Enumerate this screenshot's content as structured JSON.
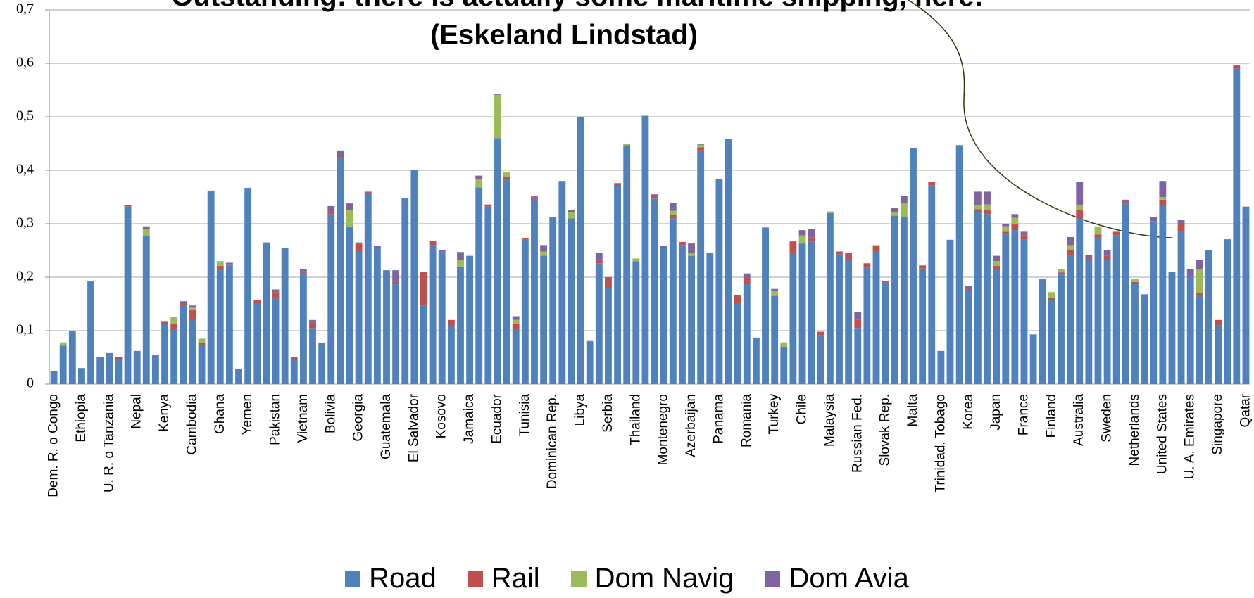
{
  "chart_data": {
    "type": "stacked_bar",
    "title": "Outstanding: there is actually some maritime shipping, here!",
    "subtitle": "(Eskeland Lindstad)",
    "categories": [
      "Dem. R. o Congo",
      null,
      null,
      "Ethiopia",
      null,
      null,
      "U. R. o Tanzania",
      null,
      null,
      "Nepal",
      null,
      null,
      "Kenya",
      null,
      null,
      "Cambodia",
      null,
      null,
      "Ghana",
      null,
      null,
      "Yemen",
      null,
      null,
      "Pakistan",
      null,
      null,
      "Vietnam",
      null,
      null,
      "Bolivia",
      null,
      null,
      "Georgia",
      null,
      null,
      "Guatemala",
      null,
      null,
      "El Salvador",
      null,
      null,
      "Kosovo",
      null,
      null,
      "Jamaica",
      null,
      null,
      "Ecuador",
      null,
      null,
      "Tunisia",
      null,
      null,
      "Dominican Rep.",
      null,
      null,
      "Libya",
      null,
      null,
      "Serbia",
      null,
      null,
      "Thailand",
      null,
      null,
      "Montenegro",
      null,
      null,
      "Azerbaijan",
      null,
      null,
      "Panama",
      null,
      null,
      "Romania",
      null,
      null,
      "Turkey",
      null,
      null,
      "Chile",
      null,
      null,
      "Malaysia",
      null,
      null,
      "Russian Fed.",
      null,
      null,
      "Slovak Rep.",
      null,
      null,
      "Malta",
      null,
      null,
      "Trinidad, Tobago",
      null,
      null,
      "Korea",
      null,
      null,
      "Japan",
      null,
      null,
      "France",
      null,
      null,
      "Finland",
      null,
      null,
      "Australia",
      null,
      null,
      "Sweden",
      null,
      null,
      "Netherlands",
      null,
      null,
      "United States",
      null,
      null,
      "U. A. Emirates",
      null,
      null,
      "Singapore",
      null,
      null,
      "Qatar"
    ],
    "series": [
      {
        "name": "Road",
        "color": "#4f81bd",
        "values": [
          0.025,
          0.072,
          0.1,
          0.03,
          0.192,
          0.05,
          0.058,
          0.046,
          0.332,
          0.062,
          0.278,
          0.054,
          0.112,
          0.102,
          0.148,
          0.122,
          0.073,
          0.36,
          0.215,
          0.222,
          0.029,
          0.367,
          0.152,
          0.265,
          0.16,
          0.254,
          0.045,
          0.208,
          0.105,
          0.077,
          0.318,
          0.425,
          0.295,
          0.248,
          0.357,
          0.254,
          0.213,
          0.188,
          0.348,
          0.4,
          0.147,
          0.26,
          0.247,
          0.108,
          0.22,
          0.24,
          0.368,
          0.332,
          0.46,
          0.384,
          0.103,
          0.27,
          0.346,
          0.24,
          0.313,
          0.38,
          0.31,
          0.5,
          0.08,
          0.226,
          0.18,
          0.37,
          0.447,
          0.23,
          0.502,
          0.347,
          0.255,
          0.31,
          0.26,
          0.24,
          0.437,
          0.245,
          0.383,
          0.458,
          0.152,
          0.188,
          0.087,
          0.293,
          0.165,
          0.07,
          0.245,
          0.263,
          0.267,
          0.092,
          0.32,
          0.243,
          0.232,
          0.105,
          0.218,
          0.248,
          0.19,
          0.315,
          0.312,
          0.442,
          0.216,
          0.372,
          0.062,
          0.27,
          0.447,
          0.177,
          0.322,
          0.318,
          0.215,
          0.28,
          0.288,
          0.27,
          0.093,
          0.196,
          0.157,
          0.205,
          0.24,
          0.31,
          0.233,
          0.275,
          0.232,
          0.278,
          0.338,
          0.187,
          0.168,
          0.305,
          0.335,
          0.21,
          0.285,
          0.2,
          0.165,
          0.25,
          0.11,
          0.271,
          0.59,
          0.332
        ]
      },
      {
        "name": "Rail",
        "color": "#c0504d",
        "values": [
          0,
          0,
          0,
          0,
          0,
          0,
          0,
          0.004,
          0.003,
          0,
          0,
          0,
          0.006,
          0.01,
          0.004,
          0.017,
          0.004,
          0.002,
          0.006,
          0.002,
          0,
          0,
          0.005,
          0,
          0.012,
          0,
          0.005,
          0.003,
          0.01,
          0,
          0.003,
          0.003,
          0,
          0.015,
          0.003,
          0,
          0,
          0.004,
          0,
          0,
          0.063,
          0.008,
          0,
          0.012,
          0,
          0,
          0,
          0.004,
          0,
          0.003,
          0.009,
          0.003,
          0.003,
          0,
          0,
          0,
          0,
          0,
          0,
          0.005,
          0.02,
          0.004,
          0,
          0,
          0,
          0.005,
          0,
          0.006,
          0.006,
          0,
          0.006,
          0,
          0,
          0,
          0.015,
          0.012,
          0,
          0,
          0,
          0,
          0.022,
          0,
          0.007,
          0.006,
          0,
          0.005,
          0.013,
          0.015,
          0.008,
          0.01,
          0.003,
          0,
          0,
          0,
          0.006,
          0.006,
          0,
          0,
          0,
          0.003,
          0.005,
          0.008,
          0.006,
          0.005,
          0.011,
          0.008,
          0,
          0,
          0.005,
          0.004,
          0.01,
          0.015,
          0.005,
          0.005,
          0.008,
          0.007,
          0.004,
          0.004,
          0,
          0,
          0.01,
          0,
          0.015,
          0,
          0.005,
          0,
          0.01,
          0,
          0.006,
          0
        ]
      },
      {
        "name": "Dom Navig",
        "color": "#9bbb59",
        "values": [
          0,
          0.006,
          0,
          0,
          0,
          0,
          0,
          0,
          0,
          0,
          0.012,
          0,
          0,
          0.013,
          0,
          0.004,
          0.008,
          0,
          0.009,
          0,
          0,
          0,
          0,
          0,
          0,
          0,
          0,
          0,
          0,
          0,
          0,
          0,
          0.03,
          0,
          0,
          0,
          0,
          0,
          0,
          0,
          0,
          0,
          0,
          0,
          0.012,
          0,
          0.016,
          0,
          0.081,
          0.009,
          0.008,
          0,
          0,
          0.008,
          0,
          0,
          0.012,
          0,
          0,
          0,
          0,
          0,
          0.003,
          0.005,
          0,
          0,
          0,
          0.008,
          0,
          0.006,
          0.005,
          0,
          0,
          0,
          0,
          0,
          0,
          0,
          0.01,
          0.008,
          0,
          0.015,
          0,
          0,
          0.003,
          0,
          0,
          0,
          0,
          0.002,
          0,
          0.007,
          0.027,
          0,
          0,
          0,
          0,
          0,
          0,
          0,
          0.007,
          0.01,
          0.009,
          0.01,
          0.012,
          0,
          0,
          0,
          0.01,
          0.006,
          0.01,
          0.01,
          0,
          0.015,
          0,
          0,
          0,
          0.006,
          0,
          0,
          0.005,
          0,
          0,
          0,
          0.045,
          0,
          0,
          0,
          0,
          0
        ]
      },
      {
        "name": "Dom Avia",
        "color": "#8064a2",
        "values": [
          0,
          0,
          0,
          0,
          0,
          0,
          0,
          0,
          0,
          0,
          0.005,
          0,
          0,
          0,
          0.003,
          0.004,
          0,
          0,
          0,
          0.003,
          0,
          0,
          0,
          0,
          0.005,
          0,
          0,
          0.004,
          0.005,
          0,
          0.012,
          0.009,
          0.013,
          0.002,
          0,
          0.004,
          0,
          0.021,
          0,
          0,
          0,
          0,
          0.003,
          0,
          0.015,
          0,
          0.006,
          0,
          0.002,
          0,
          0.007,
          0,
          0.003,
          0.012,
          0,
          0,
          0.003,
          0,
          0.002,
          0.015,
          0,
          0.002,
          0,
          0,
          0,
          0.003,
          0.003,
          0.015,
          0,
          0.017,
          0.002,
          0,
          0,
          0,
          0,
          0.007,
          0,
          0,
          0.003,
          0,
          0,
          0.01,
          0.016,
          0,
          0,
          0,
          0,
          0.015,
          0,
          0,
          0,
          0.008,
          0.013,
          0,
          0,
          0,
          0,
          0,
          0,
          0.003,
          0.026,
          0.024,
          0.01,
          0.005,
          0.007,
          0.007,
          0,
          0,
          0,
          0,
          0.015,
          0.043,
          0.004,
          0,
          0.01,
          0,
          0.003,
          0,
          0,
          0.007,
          0.03,
          0,
          0.007,
          0.015,
          0.017,
          0,
          0,
          0,
          0,
          0
        ]
      }
    ],
    "ylim": [
      0,
      0.7
    ],
    "yticks": [
      0,
      {
        "value": 0.1,
        "label": "0,1"
      },
      {
        "value": 0.2,
        "label": "0,2"
      },
      {
        "value": 0.3,
        "label": "0,3"
      },
      {
        "value": 0.4,
        "label": "0,4"
      },
      {
        "value": 0.5,
        "label": "0,5"
      },
      {
        "value": 0.6,
        "label": "0,6"
      },
      {
        "value": 0.7,
        "label": "0,7"
      }
    ],
    "grid": true
  }
}
